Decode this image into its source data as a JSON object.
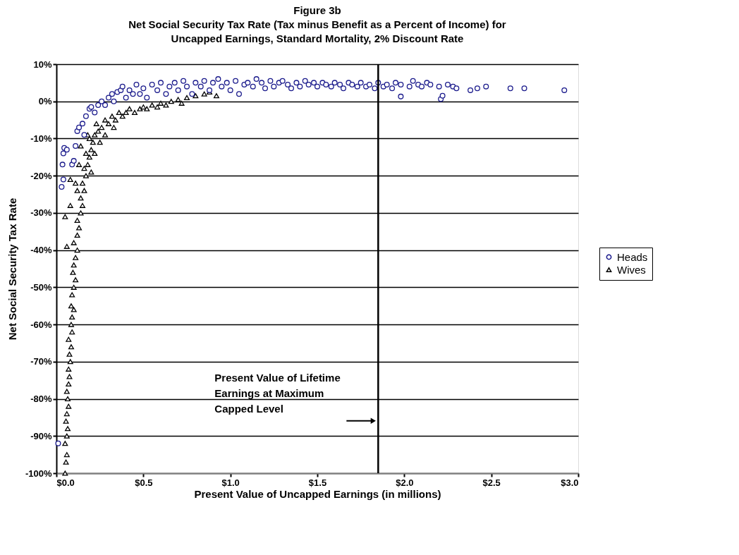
{
  "chart_data": {
    "type": "scatter",
    "title": "Figure 3b",
    "subtitle": "Net Social Security Tax Rate (Tax minus Benefit as a Percent of Income) for Uncapped Earnings, Standard Mortality, 2% Discount Rate",
    "xlabel": "Present Value of Uncapped Earnings (in millions)",
    "ylabel": "Net Social Security Tax Rate",
    "xlim": [
      0,
      3
    ],
    "ylim": [
      -100,
      10
    ],
    "xticks": [
      {
        "value": 0,
        "label": "$0.0"
      },
      {
        "value": 0.5,
        "label": "$0.5"
      },
      {
        "value": 1,
        "label": "$1.0"
      },
      {
        "value": 1.5,
        "label": "$1.5"
      },
      {
        "value": 2,
        "label": "$2.0"
      },
      {
        "value": 2.5,
        "label": "$2.5"
      },
      {
        "value": 3,
        "label": "$3.0"
      }
    ],
    "yticks": [
      {
        "value": 10,
        "label": "10%"
      },
      {
        "value": 0,
        "label": "0%"
      },
      {
        "value": -10,
        "label": "-10%"
      },
      {
        "value": -20,
        "label": "-20%"
      },
      {
        "value": -30,
        "label": "-30%"
      },
      {
        "value": -40,
        "label": "-40%"
      },
      {
        "value": -50,
        "label": "-50%"
      },
      {
        "value": -60,
        "label": "-60%"
      },
      {
        "value": -70,
        "label": "-70%"
      },
      {
        "value": -80,
        "label": "-80%"
      },
      {
        "value": -90,
        "label": "-90%"
      },
      {
        "value": -100,
        "label": "-100%"
      }
    ],
    "grid": "y",
    "legend": "right",
    "ref_lines": [
      {
        "axis": "x",
        "value": 1.85,
        "label": "Present Value of Lifetime Earnings at Maximum Capped Level",
        "color": "#000000"
      }
    ],
    "series": [
      {
        "name": "Heads",
        "color": "#1a1a8c",
        "marker": "circle",
        "x": [
          0.01,
          0.03,
          0.04,
          0.035,
          0.04,
          0.045,
          0.06,
          0.09,
          0.1,
          0.11,
          0.12,
          0.13,
          0.15,
          0.16,
          0.17,
          0.19,
          0.2,
          0.22,
          0.24,
          0.26,
          0.28,
          0.3,
          0.32,
          0.33,
          0.35,
          0.37,
          0.38,
          0.4,
          0.42,
          0.44,
          0.46,
          0.48,
          0.5,
          0.52,
          0.55,
          0.58,
          0.6,
          0.63,
          0.65,
          0.68,
          0.7,
          0.73,
          0.75,
          0.78,
          0.8,
          0.83,
          0.85,
          0.88,
          0.9,
          0.93,
          0.95,
          0.98,
          1.0,
          1.03,
          1.05,
          1.08,
          1.1,
          1.13,
          1.15,
          1.18,
          1.2,
          1.23,
          1.25,
          1.28,
          1.3,
          1.33,
          1.35,
          1.38,
          1.4,
          1.43,
          1.45,
          1.48,
          1.5,
          1.53,
          1.55,
          1.58,
          1.6,
          1.63,
          1.65,
          1.68,
          1.7,
          1.73,
          1.75,
          1.78,
          1.8,
          1.83,
          1.85,
          1.88,
          1.9,
          1.93,
          1.95,
          1.98,
          1.98,
          2.03,
          2.05,
          2.08,
          2.1,
          2.13,
          2.15,
          2.2,
          2.21,
          2.22,
          2.25,
          2.28,
          2.3,
          2.38,
          2.42,
          2.47,
          2.61,
          2.69,
          2.92
        ],
        "values": [
          -92,
          -23,
          -21,
          -17,
          -14,
          -12.5,
          -13,
          -17,
          -16,
          -12,
          -8,
          -7,
          -6,
          -9,
          -4,
          -2,
          -1.5,
          -3,
          -1,
          0,
          -1,
          1,
          2,
          0,
          2.5,
          3,
          4,
          1,
          3,
          2,
          4.5,
          2,
          3.5,
          1,
          4.5,
          3,
          5,
          2,
          4,
          5,
          3,
          5.5,
          4,
          2,
          5,
          4,
          5.5,
          3,
          5,
          6,
          4,
          5,
          3,
          5.5,
          2,
          4.5,
          5,
          4,
          6,
          5,
          3.5,
          5.5,
          4,
          5,
          5.5,
          4.5,
          3.5,
          5,
          4,
          5.5,
          4.5,
          5,
          4,
          5,
          4.5,
          4,
          5,
          4.5,
          3.5,
          5,
          4.5,
          4,
          5,
          4,
          4.5,
          3.5,
          5,
          4,
          4.5,
          3.5,
          5,
          4.5,
          1.3,
          4,
          5.5,
          4.5,
          4,
          5,
          4.5,
          4,
          0.6,
          1.5,
          4.5,
          4,
          3.5,
          3,
          3.5,
          4,
          3.5,
          3.5,
          3
        ]
      },
      {
        "name": "Wives",
        "color": "#000000",
        "marker": "triangle",
        "x": [
          0.05,
          0.055,
          0.06,
          0.05,
          0.06,
          0.065,
          0.055,
          0.06,
          0.07,
          0.065,
          0.06,
          0.07,
          0.075,
          0.07,
          0.08,
          0.075,
          0.085,
          0.07,
          0.09,
          0.085,
          0.09,
          0.1,
          0.085,
          0.09,
          0.1,
          0.11,
          0.095,
          0.1,
          0.11,
          0.12,
          0.1,
          0.12,
          0.13,
          0.12,
          0.14,
          0.15,
          0.14,
          0.16,
          0.15,
          0.17,
          0.16,
          0.18,
          0.19,
          0.17,
          0.2,
          0.21,
          0.19,
          0.22,
          0.24,
          0.23,
          0.26,
          0.28,
          0.3,
          0.32,
          0.34,
          0.36,
          0.38,
          0.4,
          0.42,
          0.45,
          0.48,
          0.5,
          0.52,
          0.55,
          0.58,
          0.6,
          0.63,
          0.66,
          0.7,
          0.72,
          0.75,
          0.8,
          0.85,
          0.88,
          0.92,
          0.05,
          0.06,
          0.08,
          0.11,
          0.08,
          0.13,
          0.14,
          0.18,
          0.2,
          0.22,
          0.25,
          0.28,
          0.33,
          0.12
        ],
        "values": [
          -100,
          -97,
          -95,
          -92,
          -90,
          -88,
          -86,
          -84,
          -82,
          -80,
          -78,
          -76,
          -74,
          -72,
          -70,
          -68,
          -66,
          -64,
          -62,
          -60,
          -58,
          -56,
          -55,
          -52,
          -50,
          -48,
          -46,
          -44,
          -42,
          -40,
          -38,
          -36,
          -34,
          -32,
          -30,
          -28,
          -26,
          -24,
          -22,
          -20,
          -18,
          -17,
          -15,
          -14,
          -13,
          -11,
          -10,
          -9,
          -8,
          -6,
          -7,
          -5,
          -6,
          -4,
          -5,
          -3,
          -4,
          -3,
          -2,
          -3,
          -2,
          -1.5,
          -2,
          -1,
          -1.5,
          -0.5,
          -1,
          0,
          0.5,
          -0.5,
          1,
          1.5,
          2,
          2.5,
          1.5,
          -31,
          -39,
          -28,
          -22,
          -21,
          -17,
          -12,
          -9,
          -19,
          -14,
          -11,
          -9,
          -7,
          -24
        ]
      }
    ]
  }
}
